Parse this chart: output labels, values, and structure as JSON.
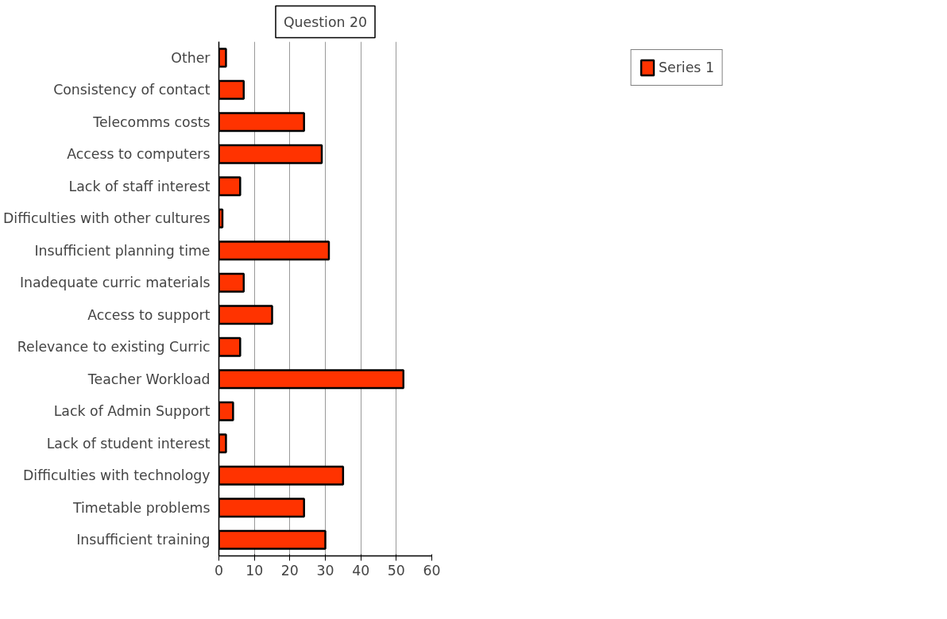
{
  "chart_data": {
    "type": "bar",
    "orientation": "horizontal",
    "title": "Question 20",
    "categories": [
      "Other",
      "Consistency of contact",
      "Telecomms costs",
      "Access to computers",
      "Lack of staff interest",
      "Difficulties with other cultures",
      "Insufficient planning time",
      "Inadequate curric materials",
      "Access to support",
      "Relevance to existing Curric",
      "Teacher Workload",
      "Lack of Admin Support",
      "Lack of student interest",
      "Difficulties with technology",
      "Timetable problems",
      "Insufficient training"
    ],
    "series": [
      {
        "name": "Series 1",
        "color": "#ff3300",
        "values": [
          2,
          7,
          24,
          29,
          6,
          1,
          31,
          7,
          15,
          6,
          52,
          4,
          2,
          35,
          24,
          30
        ]
      }
    ],
    "xlim": [
      0,
      60
    ],
    "xticks": [
      0,
      10,
      20,
      30,
      40,
      50,
      60
    ],
    "grid": "x",
    "legend": "top right"
  }
}
